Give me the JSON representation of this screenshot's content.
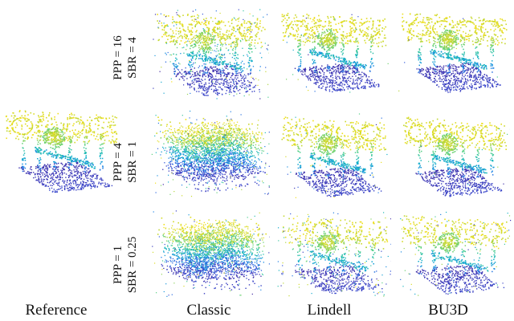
{
  "columns": [
    "Reference",
    "Classic",
    "Lindell",
    "BU3D"
  ],
  "rows": [
    {
      "ppp": "PPP = 16",
      "sbr": "SBR = 4"
    },
    {
      "ppp": "PPP = 4",
      "sbr": "SBR = 1"
    },
    {
      "ppp": "PPP = 1",
      "sbr": "SBR = 0.25"
    }
  ],
  "colormap": [
    "#3b1f9a",
    "#3a52d8",
    "#1f86e6",
    "#12b3c7",
    "#4ecf8a",
    "#b8d63a",
    "#f6e01a"
  ]
}
